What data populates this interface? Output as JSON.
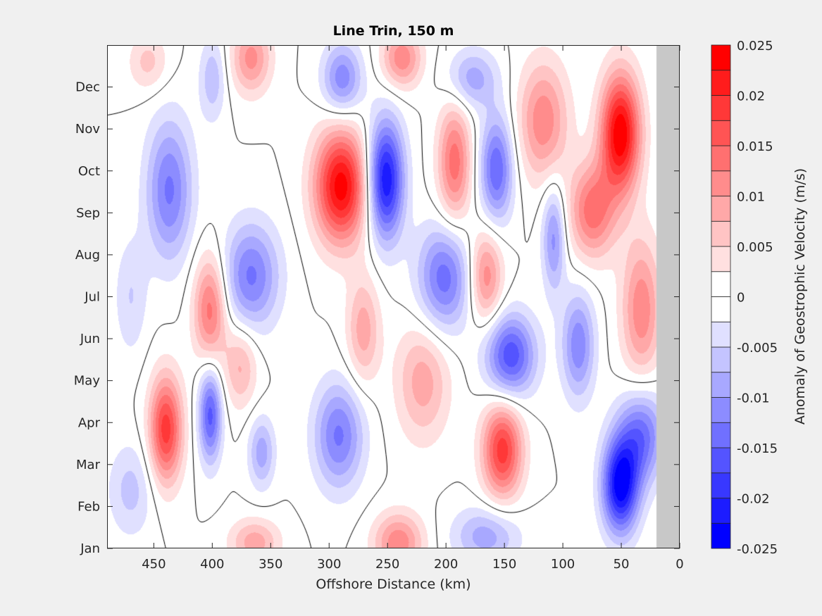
{
  "chart_data": {
    "type": "heatmap",
    "subtype": "filled-contour",
    "title": "Line Trin, 150 m",
    "xlabel": "Offshore Distance (km)",
    "ylabel": "",
    "xlim": [
      490,
      0
    ],
    "x_reversed": true,
    "ylim": [
      1,
      13
    ],
    "xticks": [
      450,
      400,
      350,
      300,
      250,
      200,
      150,
      100,
      50,
      0
    ],
    "yticks": [
      1,
      2,
      3,
      4,
      5,
      6,
      7,
      8,
      9,
      10,
      11,
      12
    ],
    "yticklabels": [
      "Jan",
      "Feb",
      "Mar",
      "Apr",
      "May",
      "Jun",
      "Jul",
      "Aug",
      "Sep",
      "Oct",
      "Nov",
      "Dec"
    ],
    "data_coverage_km": [
      20,
      490
    ],
    "nodata_color": "#c8c8c8",
    "zero_contour_color": "#000000",
    "colorbar": {
      "label": "Anomaly of Geostrophic Velocity (m/s)",
      "clim": [
        -0.025,
        0.025
      ],
      "level_step": 0.0025,
      "ticks": [
        0.025,
        0.02,
        0.015,
        0.01,
        0.005,
        0,
        -0.005,
        -0.01,
        -0.015,
        -0.02,
        -0.025
      ],
      "ticklabels": [
        "0.025",
        "0.02",
        "0.015",
        "0.01",
        "0.005",
        "0",
        "-0.005",
        "-0.01",
        "-0.015",
        "-0.02",
        "-0.025"
      ],
      "negative_color": "#0000ff",
      "positive_color": "#ff0000"
    },
    "field_features": [
      {
        "km": 290,
        "month": 9.64,
        "amp": 0.024,
        "skm": 16,
        "smo": 0.95
      },
      {
        "km": 252,
        "month": 9.8,
        "amp": -0.023,
        "skm": 11,
        "smo": 1.0
      },
      {
        "km": 51,
        "month": 10.9,
        "amp": 0.025,
        "skm": 12,
        "smo": 1.0
      },
      {
        "km": 75,
        "month": 9.05,
        "amp": 0.014,
        "skm": 14,
        "smo": 0.8
      },
      {
        "km": 51,
        "month": 2.5,
        "amp": -0.024,
        "skm": 11,
        "smo": 0.8
      },
      {
        "km": 33,
        "month": 3.7,
        "amp": -0.014,
        "skm": 14,
        "smo": 0.8
      },
      {
        "km": 440,
        "month": 3.85,
        "amp": 0.019,
        "skm": 10,
        "smo": 0.9
      },
      {
        "km": 402,
        "month": 4.2,
        "amp": -0.016,
        "skm": 7,
        "smo": 0.8
      },
      {
        "km": 402,
        "month": 6.7,
        "amp": 0.014,
        "skm": 10,
        "smo": 0.9
      },
      {
        "km": 437,
        "month": 9.55,
        "amp": -0.013,
        "skm": 14,
        "smo": 1.2
      },
      {
        "km": 367,
        "month": 7.5,
        "amp": -0.013,
        "skm": 17,
        "smo": 0.9
      },
      {
        "km": 292,
        "month": 3.7,
        "amp": -0.013,
        "skm": 15,
        "smo": 0.9
      },
      {
        "km": 358,
        "month": 3.3,
        "amp": -0.009,
        "skm": 8,
        "smo": 0.6
      },
      {
        "km": 289,
        "month": 12.2,
        "amp": -0.012,
        "skm": 12,
        "smo": 0.6
      },
      {
        "km": 238,
        "month": 12.7,
        "amp": 0.012,
        "skm": 12,
        "smo": 0.5
      },
      {
        "km": 367,
        "month": 12.7,
        "amp": 0.011,
        "skm": 12,
        "smo": 0.6
      },
      {
        "km": 193,
        "month": 10.2,
        "amp": 0.014,
        "skm": 10,
        "smo": 1.0
      },
      {
        "km": 157,
        "month": 10.05,
        "amp": -0.015,
        "skm": 10,
        "smo": 0.9
      },
      {
        "km": 117,
        "month": 11.2,
        "amp": 0.012,
        "skm": 15,
        "smo": 1.0
      },
      {
        "km": 178,
        "month": 12.2,
        "amp": -0.009,
        "skm": 15,
        "smo": 0.5
      },
      {
        "km": 152,
        "month": 3.35,
        "amp": 0.019,
        "skm": 12,
        "smo": 0.8
      },
      {
        "km": 145,
        "month": 5.6,
        "amp": -0.017,
        "skm": 15,
        "smo": 0.7
      },
      {
        "km": 202,
        "month": 7.45,
        "amp": -0.014,
        "skm": 16,
        "smo": 0.9
      },
      {
        "km": 166,
        "month": 7.5,
        "amp": 0.012,
        "skm": 10,
        "smo": 0.8
      },
      {
        "km": 87,
        "month": 5.85,
        "amp": -0.012,
        "skm": 10,
        "smo": 0.9
      },
      {
        "km": 33,
        "month": 6.7,
        "amp": 0.012,
        "skm": 12,
        "smo": 1.2
      },
      {
        "km": 220,
        "month": 5.0,
        "amp": 0.009,
        "skm": 16,
        "smo": 1.0
      },
      {
        "km": 271,
        "month": 6.2,
        "amp": 0.009,
        "skm": 10,
        "smo": 0.9
      },
      {
        "km": 376,
        "month": 5.35,
        "amp": 0.008,
        "skm": 10,
        "smo": 0.7
      },
      {
        "km": 241,
        "month": 1.15,
        "amp": 0.012,
        "skm": 15,
        "smo": 0.5
      },
      {
        "km": 364,
        "month": 1.15,
        "amp": 0.009,
        "skm": 15,
        "smo": 0.4
      },
      {
        "km": 166,
        "month": 1.3,
        "amp": -0.009,
        "skm": 20,
        "smo": 0.5
      },
      {
        "km": 455,
        "month": 12.6,
        "amp": 0.006,
        "skm": 12,
        "smo": 0.5
      },
      {
        "km": 400,
        "month": 12.2,
        "amp": -0.007,
        "skm": 8,
        "smo": 0.7
      },
      {
        "km": 108,
        "month": 8.4,
        "amp": -0.011,
        "skm": 7,
        "smo": 0.9
      },
      {
        "km": 470,
        "month": 2.4,
        "amp": -0.006,
        "skm": 14,
        "smo": 0.8
      },
      {
        "km": 470,
        "month": 7.0,
        "amp": -0.005,
        "skm": 10,
        "smo": 1.0
      }
    ]
  }
}
